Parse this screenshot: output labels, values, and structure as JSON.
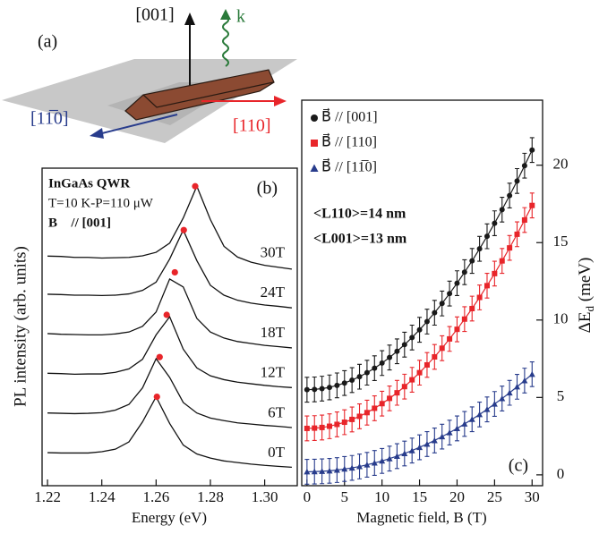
{
  "diagram": {
    "label": "(a)",
    "z_axis": "[001]",
    "wavevector": "k",
    "y_axis": "[11̅0]",
    "x_axis": "[110]"
  },
  "chart_data": [
    {
      "type": "line",
      "title": "(b)",
      "xlabel": "Energy (eV)",
      "ylabel": "PL intensity (arb. units)",
      "annotations": [
        "InGaAs QWR",
        "T=10 K-P=110 μW",
        "B⃗ // [001]"
      ],
      "xlim": [
        1.218,
        1.312
      ],
      "ylim": [
        0,
        10
      ],
      "xticks": [
        1.22,
        1.24,
        1.26,
        1.28,
        {
          "value": 1.3,
          "label": "1.30"
        }
      ],
      "x": [
        1.22,
        1.225,
        1.23,
        1.235,
        1.24,
        1.245,
        1.25,
        1.255,
        1.26,
        1.265,
        1.27,
        1.275,
        1.28,
        1.285,
        1.29,
        1.295,
        1.3,
        1.305,
        1.31
      ],
      "series": [
        {
          "name": "0T",
          "color": "#111111",
          "values": [
            1.04,
            1.03,
            1.03,
            1.03,
            1.07,
            1.15,
            1.38,
            2.01,
            2.8,
            1.96,
            1.28,
            1.0,
            0.87,
            0.78,
            0.73,
            0.68,
            0.64,
            0.61,
            0.58
          ]
        },
        {
          "name": "6T",
          "color": "#111111",
          "values": [
            2.29,
            2.28,
            2.27,
            2.28,
            2.3,
            2.38,
            2.56,
            3.08,
            4.0,
            3.41,
            2.62,
            2.29,
            2.13,
            2.05,
            1.98,
            1.94,
            1.9,
            1.87,
            1.83
          ]
        },
        {
          "name": "12T",
          "color": "#111111",
          "values": [
            3.54,
            3.53,
            3.51,
            3.52,
            3.52,
            3.57,
            3.68,
            3.98,
            4.75,
            5.32,
            4.3,
            3.71,
            3.46,
            3.34,
            3.26,
            3.21,
            3.16,
            3.12,
            3.09
          ]
        },
        {
          "name": "18T",
          "color": "#111111",
          "values": [
            4.79,
            4.77,
            4.76,
            4.75,
            4.75,
            4.78,
            4.84,
            5.02,
            5.47,
            6.51,
            6.26,
            5.27,
            4.84,
            4.65,
            4.54,
            4.48,
            4.42,
            4.38,
            4.34
          ]
        },
        {
          "name": "24T",
          "color": "#111111",
          "values": [
            6.03,
            6.02,
            6.0,
            6.0,
            5.99,
            6.0,
            6.04,
            6.15,
            6.41,
            7.14,
            8.05,
            7.09,
            6.31,
            6.0,
            5.84,
            5.75,
            5.69,
            5.65,
            5.6
          ]
        },
        {
          "name": "30T",
          "color": "#111111",
          "values": [
            7.23,
            7.22,
            7.19,
            7.19,
            7.17,
            7.18,
            7.19,
            7.24,
            7.35,
            7.64,
            8.43,
            9.43,
            8.38,
            7.54,
            7.2,
            7.04,
            6.94,
            6.88,
            6.82
          ]
        }
      ],
      "peaks": {
        "color": "#e8252a",
        "x": [
          1.2603,
          1.2613,
          1.2639,
          1.2669,
          1.2702,
          1.2744
        ],
        "y": [
          2.8,
          4.05,
          5.38,
          6.72,
          8.05,
          9.43
        ]
      }
    },
    {
      "type": "scatter",
      "title": "(c)",
      "xlabel": "Magnetic field, B (T)",
      "ylabel": [
        "ΔE",
        "d",
        " (meV)"
      ],
      "yaxis_side": "right",
      "legend": "upper left",
      "annotations": [
        "<L110>=14 nm",
        "<L001>=13 nm"
      ],
      "xlim": [
        -0.7,
        31.4
      ],
      "ylim": [
        -0.7,
        24.2
      ],
      "xticks": [
        0,
        5,
        10,
        15,
        20,
        25,
        30
      ],
      "yticks": [
        0,
        5,
        10,
        15,
        20
      ],
      "x": [
        0,
        1,
        2,
        3,
        4,
        5,
        6,
        7,
        8,
        9,
        10,
        11,
        12,
        13,
        14,
        15,
        16,
        17,
        18,
        19,
        20,
        21,
        22,
        23,
        24,
        25,
        26,
        27,
        28,
        29,
        30
      ],
      "series": [
        {
          "name": "B⃗ // [001]",
          "color": "#1a1a1a",
          "marker": "circle",
          "error": 0.8,
          "values": [
            5.5,
            5.52,
            5.57,
            5.65,
            5.78,
            5.93,
            6.12,
            6.34,
            6.6,
            6.89,
            7.22,
            7.58,
            7.98,
            8.41,
            8.87,
            9.37,
            9.9,
            10.47,
            11.07,
            11.71,
            12.38,
            13.09,
            13.82,
            14.6,
            15.41,
            16.25,
            17.13,
            18.04,
            18.98,
            19.97,
            20.98
          ]
        },
        {
          "name": "B⃗ // [110]",
          "color": "#e8252a",
          "marker": "square",
          "error": 0.8,
          "values": [
            3,
            3.02,
            3.06,
            3.14,
            3.26,
            3.4,
            3.58,
            3.78,
            4.02,
            4.3,
            4.6,
            4.94,
            5.3,
            5.7,
            6.14,
            6.6,
            7.1,
            7.62,
            8.18,
            8.78,
            9.4,
            10.06,
            10.74,
            11.46,
            12.22,
            13.0,
            13.82,
            14.66,
            15.54,
            16.46,
            17.4
          ]
        },
        {
          "name": "B⃗ // [11̅0]",
          "color": "#283c8c",
          "marker": "triangle",
          "error": 0.8,
          "values": [
            0.2,
            0.21,
            0.23,
            0.26,
            0.31,
            0.38,
            0.45,
            0.54,
            0.65,
            0.77,
            0.9,
            1.05,
            1.21,
            1.38,
            1.57,
            1.78,
            1.99,
            2.22,
            2.47,
            2.73,
            3.0,
            3.29,
            3.59,
            3.9,
            4.23,
            4.58,
            4.93,
            5.3,
            5.69,
            6.09,
            6.5
          ]
        }
      ]
    }
  ]
}
